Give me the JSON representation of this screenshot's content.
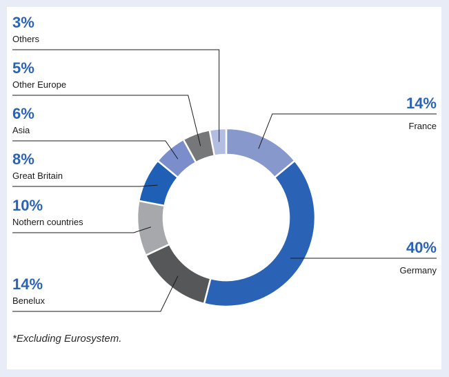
{
  "chart_data": {
    "type": "pie",
    "variant": "donut",
    "start_angle_deg": 0,
    "direction": "clockwise",
    "slices": [
      {
        "label": "France",
        "value": 14,
        "value_label": "14%",
        "color": "#8798cc",
        "side": "right"
      },
      {
        "label": "Germany",
        "value": 40,
        "value_label": "40%",
        "color": "#2a63b6",
        "side": "right"
      },
      {
        "label": "Benelux",
        "value": 14,
        "value_label": "14%",
        "color": "#555759",
        "side": "left"
      },
      {
        "label": "Nothern countries",
        "value": 10,
        "value_label": "10%",
        "color": "#a6a8ab",
        "side": "left"
      },
      {
        "label": "Great Britain",
        "value": 8,
        "value_label": "8%",
        "color": "#1f5fb5",
        "side": "left"
      },
      {
        "label": "Asia",
        "value": 6,
        "value_label": "6%",
        "color": "#7b8dcb",
        "side": "left"
      },
      {
        "label": "Other Europe",
        "value": 5,
        "value_label": "5%",
        "color": "#767779",
        "side": "left"
      },
      {
        "label": "Others",
        "value": 3,
        "value_label": "3%",
        "color": "#b3bde2",
        "side": "left"
      }
    ],
    "footnote": "*Excluding Eurosystem."
  },
  "colors": {
    "page_border": "#e7ecf6",
    "percent_text": "#2a63b6"
  }
}
